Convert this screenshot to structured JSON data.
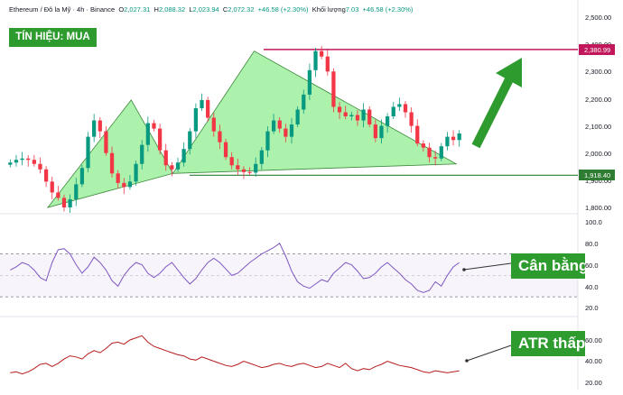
{
  "header": {
    "symbol": "Ethereum / Đô la Mỹ · 4h · Binance",
    "o_label": "O",
    "o_value": "2,027.31",
    "h_label": "H",
    "h_value": "2,088.32",
    "l_label": "L",
    "l_value": "2,023.94",
    "c_label": "C",
    "c_value": "2,072.32",
    "change": "+46.58 (+2.30%)",
    "volume_label": "Khối lượng",
    "volume_value": "7.03",
    "volume_change": "+46.58 (+2.30%)"
  },
  "signal_label": "TÍN HIỆU: MUA",
  "callouts": {
    "rsi": "Cân bằng",
    "atr": "ATR thấp"
  },
  "colors": {
    "up": "#089981",
    "down": "#f23645",
    "triangle_fill": "#90ee90",
    "triangle_edge": "#3a8a3a",
    "resistance": "#c2185b",
    "support": "#2e7d32",
    "rsi_line": "#7e57c2",
    "atr_line": "#b71c1c",
    "badge": "#2e9b2e"
  },
  "price_axis": {
    "ticks": [
      "2,500.00",
      "2,400.00",
      "2,300.00",
      "2,200.00",
      "2,100.00",
      "2,000.00",
      "1,900.00",
      "1,800.00"
    ],
    "resistance_label": "2,380.99",
    "support_label": "1,918.40"
  },
  "rsi_axis": {
    "ticks": [
      "100.0",
      "80.0",
      "60.0",
      "40.0",
      "20.0"
    ]
  },
  "atr_axis": {
    "ticks": [
      "60.00",
      "40.00",
      "20.00"
    ]
  },
  "chart_data": {
    "type": "candlestick",
    "y_range": [
      1770,
      2520
    ],
    "resistance": 2380.99,
    "support": 1918.4,
    "patterns": [
      {
        "name": "triangle-1",
        "points": [
          [
            0.076,
            1800
          ],
          [
            0.232,
            2195
          ],
          [
            0.31,
            1925
          ]
        ]
      },
      {
        "name": "triangle-2",
        "points": [
          [
            0.31,
            1925
          ],
          [
            0.462,
            2375
          ],
          [
            0.84,
            1960
          ]
        ]
      }
    ],
    "closes": [
      1965,
      1975,
      1980,
      1975,
      1960,
      1940,
      1895,
      1855,
      1835,
      1800,
      1830,
      1885,
      1945,
      2060,
      2120,
      2080,
      2000,
      1925,
      1890,
      1875,
      1895,
      1960,
      2030,
      2110,
      2090,
      2010,
      1955,
      1940,
      1965,
      2015,
      2080,
      2165,
      2195,
      2130,
      2080,
      2040,
      1985,
      1955,
      1940,
      1930,
      1928,
      1960,
      2010,
      2080,
      2120,
      2090,
      2060,
      2105,
      2160,
      2215,
      2305,
      2375,
      2355,
      2300,
      2170,
      2150,
      2135,
      2140,
      2120,
      2160,
      2105,
      2055,
      2100,
      2135,
      2170,
      2180,
      2150,
      2100,
      2035,
      2020,
      1985,
      1980,
      2025,
      2060,
      2048,
      2072
    ],
    "rsi": {
      "range": [
        10,
        100
      ],
      "levels": [
        70,
        50,
        30
      ],
      "values": [
        55,
        58,
        62,
        60,
        55,
        48,
        45,
        62,
        74,
        75,
        70,
        60,
        52,
        58,
        67,
        62,
        55,
        45,
        40,
        50,
        57,
        62,
        60,
        52,
        48,
        52,
        58,
        62,
        55,
        48,
        42,
        47,
        55,
        62,
        66,
        62,
        56,
        50,
        52,
        57,
        62,
        66,
        70,
        73,
        76,
        80,
        68,
        54,
        44,
        40,
        38,
        42,
        46,
        44,
        52,
        57,
        62,
        60,
        54,
        47,
        48,
        52,
        58,
        62,
        57,
        52,
        46,
        42,
        36,
        34,
        36,
        44,
        40,
        50,
        58,
        62
      ]
    },
    "atr": {
      "range": [
        10,
        68
      ],
      "values": [
        29,
        30,
        28,
        30,
        33,
        37,
        38,
        35,
        38,
        42,
        45,
        44,
        42,
        47,
        50,
        48,
        52,
        57,
        58,
        56,
        60,
        62,
        64,
        58,
        54,
        52,
        50,
        48,
        46,
        45,
        42,
        41,
        44,
        42,
        40,
        38,
        36,
        35,
        37,
        40,
        38,
        36,
        34,
        35,
        37,
        38,
        36,
        35,
        37,
        38,
        36,
        34,
        35,
        38,
        36,
        34,
        38,
        33,
        31,
        33,
        32,
        35,
        37,
        40,
        38,
        36,
        35,
        34,
        32,
        30,
        29,
        31,
        30,
        29,
        30,
        31
      ]
    }
  }
}
